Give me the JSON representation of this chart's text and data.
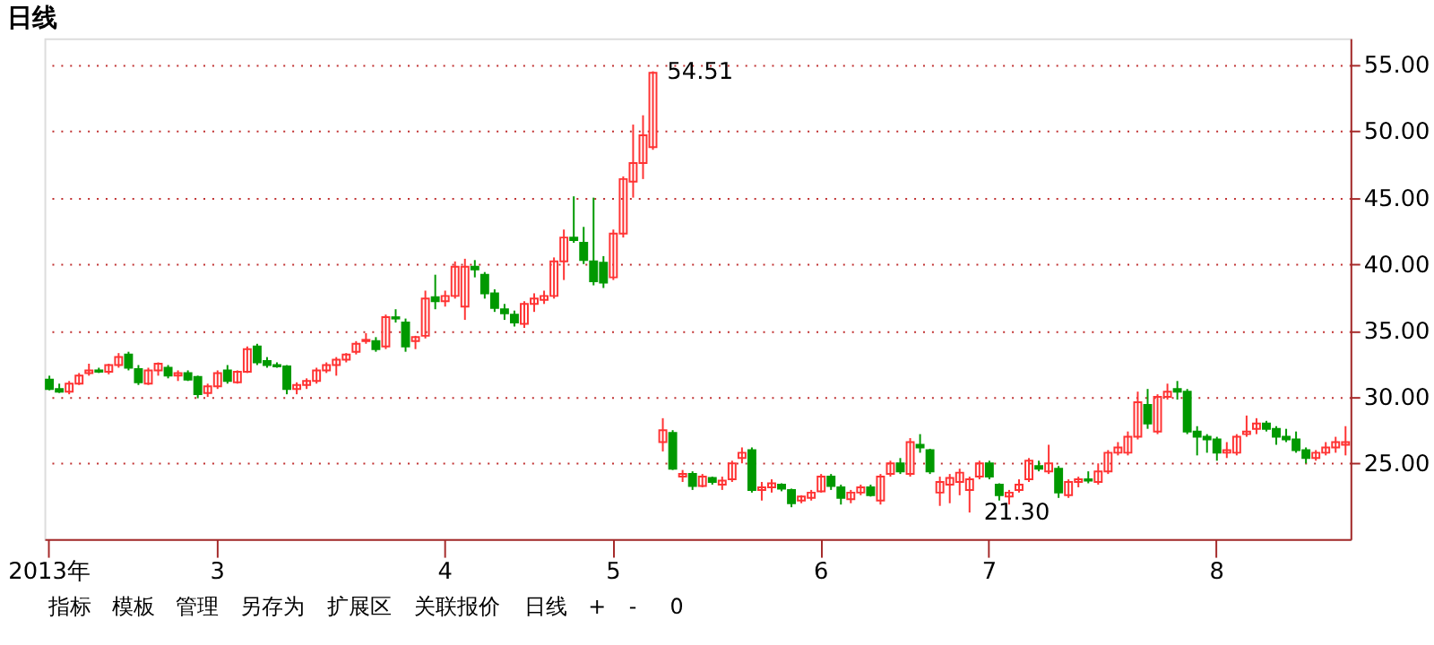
{
  "chart_data": {
    "type": "candlestick",
    "title": "日线",
    "categories": [
      "2013年",
      null,
      null,
      null,
      null,
      null,
      null,
      null,
      null,
      null,
      null,
      null,
      null,
      null,
      null,
      null,
      null,
      "3",
      null,
      null,
      null,
      null,
      null,
      null,
      null,
      null,
      null,
      null,
      null,
      null,
      null,
      null,
      null,
      null,
      null,
      null,
      null,
      null,
      null,
      null,
      "4",
      null,
      null,
      null,
      null,
      null,
      null,
      null,
      null,
      null,
      null,
      null,
      null,
      null,
      null,
      null,
      null,
      "5",
      null,
      null,
      null,
      null,
      null,
      null,
      null,
      null,
      null,
      null,
      null,
      null,
      null,
      null,
      null,
      null,
      null,
      null,
      null,
      null,
      "6",
      null,
      null,
      null,
      null,
      null,
      null,
      null,
      null,
      null,
      null,
      null,
      null,
      null,
      null,
      null,
      null,
      "7",
      null,
      null,
      null,
      null,
      null,
      null,
      null,
      null,
      null,
      null,
      null,
      null,
      null,
      null,
      null,
      null,
      null,
      null,
      null,
      null,
      null,
      null,
      "8",
      null,
      null,
      null,
      null,
      null,
      null,
      null,
      null,
      null,
      null,
      null,
      null,
      null
    ],
    "ohlc": [
      [
        31.3,
        31.6,
        30.5,
        30.6
      ],
      [
        30.6,
        31.0,
        30.3,
        30.4
      ],
      [
        30.4,
        31.2,
        30.2,
        31.0
      ],
      [
        31.0,
        31.8,
        30.9,
        31.6
      ],
      [
        31.8,
        32.5,
        31.6,
        32.0
      ],
      [
        32.0,
        32.2,
        31.8,
        31.9
      ],
      [
        31.9,
        32.5,
        31.7,
        32.4
      ],
      [
        32.4,
        33.3,
        32.2,
        33.0
      ],
      [
        33.2,
        33.4,
        32.0,
        32.2
      ],
      [
        32.1,
        32.4,
        30.9,
        31.1
      ],
      [
        31.0,
        32.2,
        30.9,
        32.0
      ],
      [
        32.0,
        32.6,
        31.6,
        32.5
      ],
      [
        32.2,
        32.4,
        31.4,
        31.6
      ],
      [
        31.6,
        32.0,
        31.2,
        31.8
      ],
      [
        31.8,
        32.0,
        31.2,
        31.3
      ],
      [
        31.5,
        31.6,
        29.9,
        30.2
      ],
      [
        30.3,
        31.0,
        30.0,
        30.8
      ],
      [
        30.8,
        32.0,
        30.6,
        31.8
      ],
      [
        32.0,
        32.4,
        31.0,
        31.2
      ],
      [
        31.1,
        32.0,
        31.0,
        31.9
      ],
      [
        31.9,
        33.8,
        31.8,
        33.6
      ],
      [
        33.8,
        34.0,
        32.4,
        32.6
      ],
      [
        32.7,
        33.0,
        32.2,
        32.4
      ],
      [
        32.4,
        32.6,
        32.2,
        32.3
      ],
      [
        32.3,
        32.4,
        30.2,
        30.6
      ],
      [
        30.6,
        31.1,
        30.2,
        30.9
      ],
      [
        30.9,
        31.4,
        30.6,
        31.2
      ],
      [
        31.2,
        32.2,
        31.0,
        32.0
      ],
      [
        32.0,
        32.6,
        31.8,
        32.4
      ],
      [
        32.4,
        33.0,
        31.6,
        32.8
      ],
      [
        32.8,
        33.3,
        32.6,
        33.2
      ],
      [
        33.4,
        34.2,
        33.2,
        34.0
      ],
      [
        34.2,
        34.8,
        34.0,
        34.3
      ],
      [
        34.2,
        34.5,
        33.4,
        33.6
      ],
      [
        33.8,
        36.2,
        33.6,
        36.0
      ],
      [
        36.0,
        36.6,
        35.6,
        35.9
      ],
      [
        35.6,
        35.9,
        33.4,
        33.8
      ],
      [
        34.2,
        34.6,
        33.6,
        34.5
      ],
      [
        34.6,
        38.0,
        34.4,
        37.4
      ],
      [
        37.5,
        39.2,
        36.6,
        37.2
      ],
      [
        37.2,
        38.0,
        36.8,
        37.6
      ],
      [
        37.6,
        40.2,
        37.4,
        39.8
      ],
      [
        36.8,
        40.4,
        35.8,
        39.8
      ],
      [
        39.8,
        40.3,
        39.0,
        39.6
      ],
      [
        39.2,
        39.4,
        37.4,
        37.8
      ],
      [
        37.8,
        38.1,
        36.4,
        36.7
      ],
      [
        36.6,
        37.0,
        35.8,
        36.3
      ],
      [
        36.2,
        36.5,
        35.3,
        35.6
      ],
      [
        35.5,
        37.2,
        35.2,
        37.0
      ],
      [
        37.0,
        37.8,
        36.4,
        37.4
      ],
      [
        37.3,
        38.0,
        37.0,
        37.6
      ],
      [
        37.6,
        40.5,
        37.4,
        40.2
      ],
      [
        40.2,
        42.6,
        38.8,
        42.0
      ],
      [
        42.0,
        45.1,
        41.6,
        41.8
      ],
      [
        41.6,
        42.8,
        40.0,
        40.3
      ],
      [
        40.2,
        45.0,
        38.4,
        38.7
      ],
      [
        40.1,
        40.6,
        38.2,
        38.6
      ],
      [
        39.0,
        42.6,
        38.8,
        42.3
      ],
      [
        42.3,
        46.6,
        42.0,
        46.4
      ],
      [
        46.2,
        50.5,
        45.0,
        47.6
      ],
      [
        47.6,
        51.2,
        46.4,
        49.7
      ],
      [
        48.8,
        54.51,
        48.6,
        54.4
      ],
      [
        26.6,
        28.4,
        25.9,
        27.5
      ],
      [
        27.3,
        27.5,
        24.5,
        24.6
      ],
      [
        24.0,
        24.5,
        23.6,
        24.2
      ],
      [
        24.2,
        24.4,
        23.0,
        23.3
      ],
      [
        23.3,
        24.2,
        23.2,
        24.0
      ],
      [
        23.9,
        24.0,
        23.4,
        23.6
      ],
      [
        23.4,
        24.0,
        23.0,
        23.7
      ],
      [
        23.8,
        25.2,
        23.6,
        25.0
      ],
      [
        25.4,
        26.2,
        25.0,
        25.8
      ],
      [
        26.0,
        26.2,
        22.8,
        23.0
      ],
      [
        23.0,
        23.6,
        22.2,
        23.2
      ],
      [
        23.2,
        23.8,
        22.8,
        23.5
      ],
      [
        23.4,
        23.5,
        22.9,
        23.1
      ],
      [
        23.0,
        23.1,
        21.7,
        22.0
      ],
      [
        22.2,
        22.6,
        22.0,
        22.5
      ],
      [
        22.4,
        23.0,
        22.2,
        22.8
      ],
      [
        22.9,
        24.2,
        22.8,
        24.0
      ],
      [
        24.0,
        24.2,
        23.0,
        23.3
      ],
      [
        23.2,
        23.4,
        21.9,
        22.4
      ],
      [
        22.3,
        23.0,
        22.0,
        22.8
      ],
      [
        22.8,
        23.4,
        22.6,
        23.2
      ],
      [
        23.2,
        23.4,
        22.5,
        22.6
      ],
      [
        22.2,
        24.2,
        21.9,
        24.0
      ],
      [
        24.2,
        25.2,
        24.0,
        25.0
      ],
      [
        25.0,
        25.4,
        24.2,
        24.4
      ],
      [
        24.2,
        26.9,
        24.0,
        26.6
      ],
      [
        26.4,
        27.2,
        25.8,
        26.2
      ],
      [
        26.0,
        26.1,
        24.2,
        24.4
      ],
      [
        22.8,
        24.0,
        21.8,
        23.6
      ],
      [
        23.4,
        24.2,
        22.0,
        23.9
      ],
      [
        23.6,
        24.6,
        22.6,
        24.3
      ],
      [
        23.0,
        24.0,
        21.3,
        23.8
      ],
      [
        24.0,
        25.2,
        23.8,
        25.0
      ],
      [
        25.0,
        25.2,
        23.8,
        24.0
      ],
      [
        23.4,
        23.5,
        22.2,
        22.6
      ],
      [
        22.5,
        23.0,
        21.9,
        22.8
      ],
      [
        23.0,
        23.8,
        22.8,
        23.4
      ],
      [
        23.8,
        25.4,
        23.6,
        25.2
      ],
      [
        24.8,
        25.2,
        24.4,
        24.6
      ],
      [
        24.4,
        26.4,
        24.2,
        25.0
      ],
      [
        24.6,
        24.8,
        22.4,
        22.8
      ],
      [
        22.6,
        23.8,
        22.4,
        23.6
      ],
      [
        23.6,
        24.0,
        23.2,
        23.8
      ],
      [
        23.8,
        24.4,
        23.5,
        23.7
      ],
      [
        23.6,
        25.0,
        23.4,
        24.4
      ],
      [
        24.4,
        26.0,
        24.2,
        25.8
      ],
      [
        25.8,
        26.6,
        25.6,
        26.2
      ],
      [
        25.8,
        27.4,
        25.6,
        27.0
      ],
      [
        27.0,
        30.4,
        26.8,
        29.6
      ],
      [
        29.4,
        30.6,
        27.6,
        28.0
      ],
      [
        27.4,
        30.2,
        27.2,
        30.0
      ],
      [
        30.0,
        31.0,
        29.8,
        30.4
      ],
      [
        30.6,
        31.2,
        29.8,
        30.4
      ],
      [
        30.4,
        30.6,
        27.2,
        27.4
      ],
      [
        27.4,
        27.8,
        25.6,
        27.0
      ],
      [
        27.0,
        27.2,
        25.8,
        26.8
      ],
      [
        26.8,
        27.0,
        25.2,
        25.8
      ],
      [
        25.8,
        26.6,
        25.4,
        26.0
      ],
      [
        25.8,
        27.2,
        25.6,
        27.0
      ],
      [
        27.2,
        28.6,
        27.0,
        27.4
      ],
      [
        27.6,
        28.4,
        27.2,
        28.0
      ],
      [
        28.0,
        28.2,
        27.4,
        27.6
      ],
      [
        27.6,
        27.8,
        26.4,
        27.0
      ],
      [
        27.0,
        27.6,
        26.6,
        26.8
      ],
      [
        26.8,
        27.4,
        25.8,
        26.0
      ],
      [
        26.0,
        26.2,
        25.0,
        25.4
      ],
      [
        25.4,
        26.0,
        25.2,
        25.8
      ],
      [
        25.8,
        26.6,
        25.6,
        26.2
      ],
      [
        26.2,
        27.0,
        25.8,
        26.6
      ],
      [
        26.4,
        27.8,
        25.6,
        26.6
      ]
    ],
    "colors": [
      "#009900",
      "#009900",
      "#ff3333",
      "#ff3333",
      "#ff3333",
      "#009900",
      "#ff3333",
      "#ff3333",
      "#009900",
      "#009900",
      "#ff3333",
      "#ff3333",
      "#009900",
      "#ff3333",
      "#009900",
      "#009900",
      "#ff3333",
      "#ff3333",
      "#009900",
      "#ff3333",
      "#ff3333",
      "#009900",
      "#009900",
      "#009900",
      "#009900",
      "#ff3333",
      "#ff3333",
      "#ff3333",
      "#ff3333",
      "#ff3333",
      "#ff3333",
      "#ff3333",
      "#ff3333",
      "#009900",
      "#ff3333",
      "#009900",
      "#009900",
      "#ff3333",
      "#ff3333",
      "#009900",
      "#ff3333",
      "#ff3333",
      "#ff3333",
      "#009900",
      "#009900",
      "#009900",
      "#009900",
      "#009900",
      "#ff3333",
      "#ff3333",
      "#ff3333",
      "#ff3333",
      "#ff3333",
      "#009900",
      "#009900",
      "#009900",
      "#009900",
      "#ff3333",
      "#ff3333",
      "#ff3333",
      "#ff3333",
      "#ff3333",
      "#ff3333",
      "#009900",
      "#ff3333",
      "#009900",
      "#ff3333",
      "#009900",
      "#ff3333",
      "#ff3333",
      "#ff3333",
      "#009900",
      "#ff3333",
      "#ff3333",
      "#009900",
      "#009900",
      "#ff3333",
      "#ff3333",
      "#ff3333",
      "#009900",
      "#009900",
      "#ff3333",
      "#ff3333",
      "#009900",
      "#ff3333",
      "#ff3333",
      "#009900",
      "#ff3333",
      "#009900",
      "#009900",
      "#ff3333",
      "#ff3333",
      "#ff3333",
      "#ff3333",
      "#ff3333",
      "#009900",
      "#009900",
      "#ff3333",
      "#ff3333",
      "#ff3333",
      "#009900",
      "#ff3333",
      "#009900",
      "#ff3333",
      "#ff3333",
      "#009900",
      "#ff3333",
      "#ff3333",
      "#ff3333",
      "#ff3333",
      "#ff3333",
      "#009900",
      "#ff3333",
      "#ff3333",
      "#009900",
      "#009900",
      "#009900",
      "#009900",
      "#009900",
      "#ff3333",
      "#ff3333",
      "#ff3333",
      "#ff3333",
      "#009900",
      "#009900",
      "#009900",
      "#009900",
      "#009900",
      "#ff3333",
      "#ff3333",
      "#ff3333",
      "#ff3333"
    ],
    "ylim": [
      19.3,
      57
    ],
    "yticks": [
      {
        "value": 25,
        "label": "25.00"
      },
      {
        "value": 30,
        "label": "30.00"
      },
      {
        "value": 35,
        "label": "35.00"
      },
      {
        "value": 40,
        "label": "40.00"
      },
      {
        "value": 45,
        "label": "45.00"
      },
      {
        "value": 50,
        "label": "50.00"
      },
      {
        "value": 55,
        "label": "55.00"
      }
    ],
    "grid": "y",
    "annotations": [
      "54.51",
      "21.30",
      "指标",
      "模板",
      "管理",
      "另存为",
      "扩展区",
      "关联报价",
      "日线",
      "+",
      "-",
      "0"
    ]
  }
}
